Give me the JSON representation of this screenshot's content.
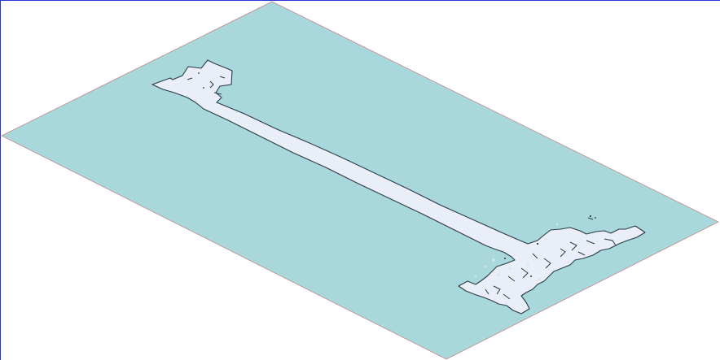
{
  "scene": {
    "description_kind": "isometric-occupancy-grid-map",
    "colors": {
      "background": "#ffffff",
      "frame_edge": "#2a35d8",
      "unknown_area": "#a8d8dc",
      "unknown_area_outline": "#c48a8a",
      "free_space": "#eaeef8",
      "obstacle_edge": "#2b3a46",
      "noise_specks": "#cfe6ee"
    }
  }
}
